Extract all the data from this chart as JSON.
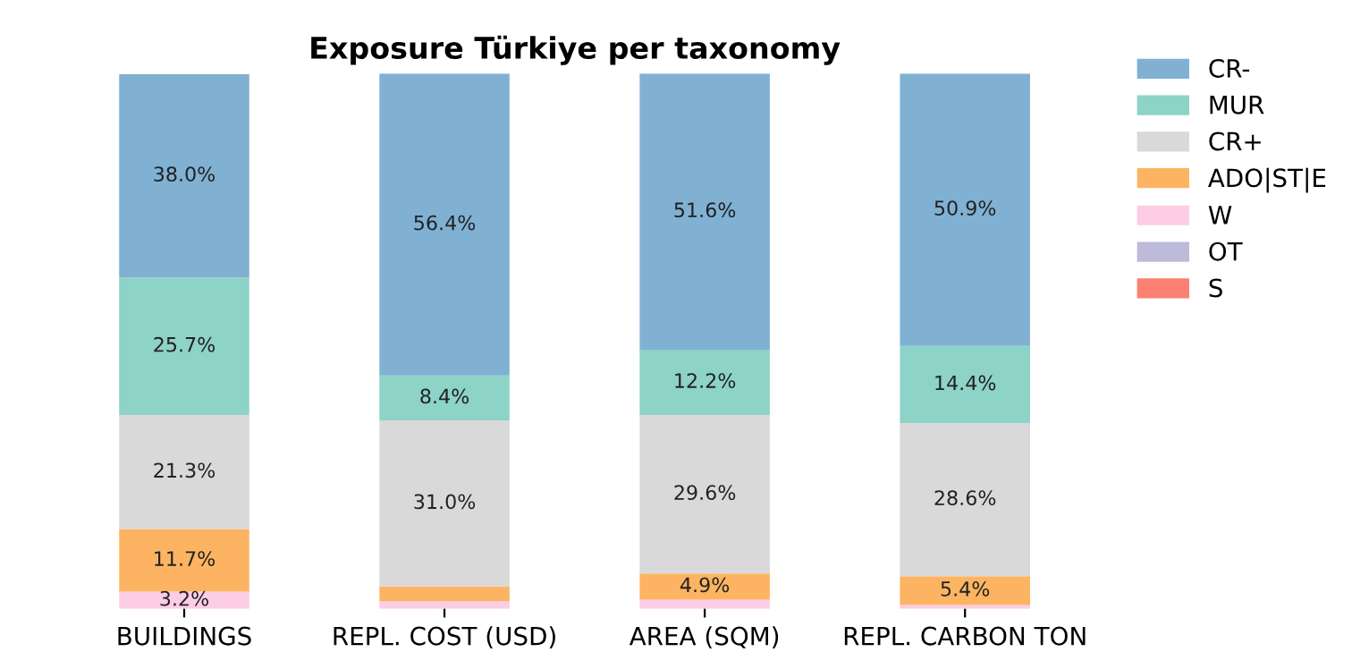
{
  "chart_data": {
    "type": "bar",
    "stacked": true,
    "title": "Exposure Türkiye per taxonomy",
    "categories": [
      "BUILDINGS",
      "REPL. COST (USD)",
      "AREA (SQM)",
      "REPL. CARBON TON"
    ],
    "ylim": [
      0,
      100
    ],
    "tick_labels": "x",
    "grid": false,
    "legend": "top right",
    "series": [
      {
        "name": "S",
        "color": "#fb8072",
        "values": [
          0,
          0,
          0,
          0
        ],
        "value_labels": [
          null,
          null,
          null,
          null
        ]
      },
      {
        "name": "OT",
        "color": "#bebada",
        "values": [
          0,
          0,
          0,
          0
        ],
        "value_labels": [
          null,
          null,
          null,
          null
        ]
      },
      {
        "name": "W",
        "color": "#fccde5",
        "values": [
          3.2,
          1.4,
          1.7,
          0.7
        ],
        "value_labels": [
          "3.2%",
          null,
          null,
          null
        ]
      },
      {
        "name": "ADO|ST|E",
        "color": "#fdb462",
        "values": [
          11.7,
          2.8,
          4.9,
          5.4
        ],
        "value_labels": [
          "11.7%",
          null,
          "4.9%",
          "5.4%"
        ]
      },
      {
        "name": "CR+",
        "color": "#d9d9d9",
        "values": [
          21.3,
          31.0,
          29.6,
          28.6
        ],
        "value_labels": [
          "21.3%",
          "31.0%",
          "29.6%",
          "28.6%"
        ]
      },
      {
        "name": "MUR",
        "color": "#8dd3c7",
        "values": [
          25.7,
          8.4,
          12.2,
          14.4
        ],
        "value_labels": [
          "25.7%",
          "8.4%",
          "12.2%",
          "14.4%"
        ]
      },
      {
        "name": "CR-",
        "color": "#80b1d3",
        "values": [
          38.0,
          56.4,
          51.6,
          50.9
        ],
        "value_labels": [
          "38.0%",
          "56.4%",
          "51.6%",
          "50.9%"
        ]
      }
    ]
  }
}
